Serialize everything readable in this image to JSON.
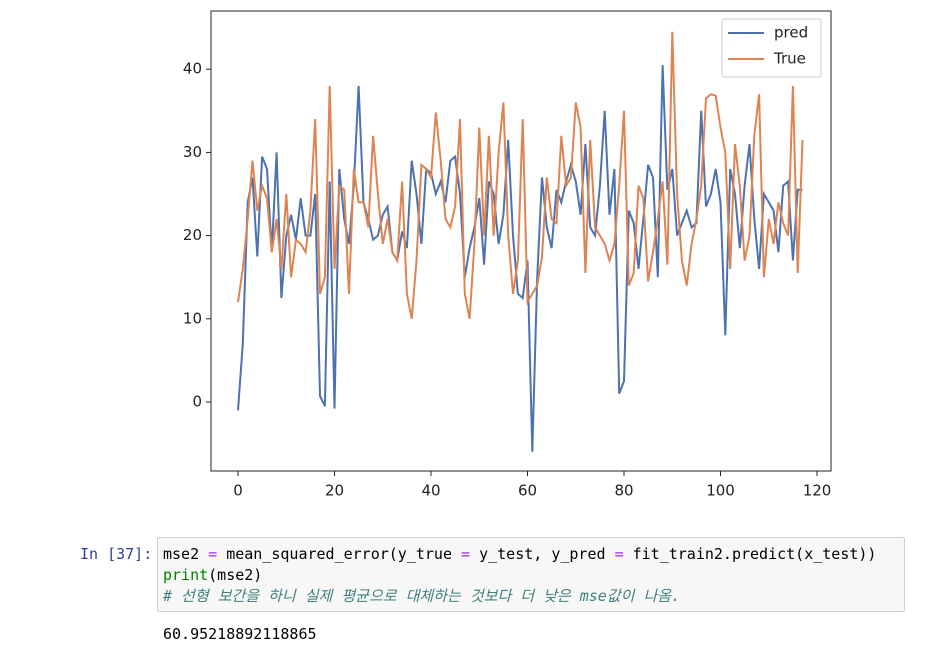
{
  "chart_data": {
    "type": "line",
    "x": [
      0,
      1,
      2,
      3,
      4,
      5,
      6,
      7,
      8,
      9,
      10,
      11,
      12,
      13,
      14,
      15,
      16,
      17,
      18,
      19,
      20,
      21,
      22,
      23,
      24,
      25,
      26,
      27,
      28,
      29,
      30,
      31,
      32,
      33,
      34,
      35,
      36,
      37,
      38,
      39,
      40,
      41,
      42,
      43,
      44,
      45,
      46,
      47,
      48,
      49,
      50,
      51,
      52,
      53,
      54,
      55,
      56,
      57,
      58,
      59,
      60,
      61,
      62,
      63,
      64,
      65,
      66,
      67,
      68,
      69,
      70,
      71,
      72,
      73,
      74,
      75,
      76,
      77,
      78,
      79,
      80,
      81,
      82,
      83,
      84,
      85,
      86,
      87,
      88,
      89,
      90,
      91,
      92,
      93,
      94,
      95,
      96,
      97,
      98,
      99,
      100,
      101,
      102,
      103,
      104,
      105,
      106,
      107,
      108,
      109,
      110,
      111,
      112,
      113,
      114,
      115,
      116,
      117
    ],
    "series": [
      {
        "name": "pred",
        "color": "#4c72b0",
        "values": [
          -1,
          7,
          24,
          27,
          17.5,
          29.5,
          28,
          18,
          30,
          12.5,
          20,
          22.5,
          19.5,
          24.5,
          20,
          20,
          25,
          0.7,
          -0.5,
          26.5,
          -0.8,
          28,
          22,
          19,
          26,
          38,
          24,
          22,
          19.5,
          20,
          22.5,
          23.5,
          18,
          17,
          20.5,
          18.5,
          29,
          25,
          19,
          28,
          27.5,
          25,
          26.5,
          24,
          29,
          29.5,
          25,
          15,
          18.5,
          21,
          24.5,
          16.5,
          26.5,
          25,
          19,
          22.5,
          31.5,
          20,
          13,
          12.5,
          17,
          -6,
          15,
          27,
          21,
          18.5,
          25.5,
          24,
          26.5,
          28.5,
          26.5,
          22.5,
          31,
          21,
          20,
          26,
          35,
          22.5,
          28,
          1,
          2.5,
          23,
          21.5,
          16,
          22,
          28.5,
          27,
          15,
          40.5,
          25.5,
          28,
          20,
          21.5,
          23,
          21,
          21.5,
          35,
          23.5,
          25,
          28,
          24,
          8,
          28,
          25,
          18.5,
          26,
          31,
          22,
          16,
          25,
          24,
          23,
          18,
          26,
          26.5,
          17,
          25.5,
          25.5
        ]
      },
      {
        "name": "True",
        "color": "#dd8452",
        "values": [
          12,
          16,
          22,
          29,
          23,
          26,
          24.5,
          18,
          22,
          16,
          25,
          15,
          19.5,
          19,
          18,
          23,
          34,
          13,
          15,
          38,
          16,
          26,
          25.5,
          13,
          28,
          24,
          24,
          21,
          32,
          25,
          19,
          22,
          18,
          17,
          26.5,
          13,
          10,
          17,
          28.5,
          28,
          27,
          34.8,
          29,
          22,
          21,
          23.5,
          34,
          13,
          10,
          19,
          33,
          20,
          32,
          20,
          30,
          36,
          20,
          13,
          17,
          34,
          12,
          13,
          14,
          17.5,
          27,
          22,
          21.5,
          32,
          26,
          27,
          36,
          33,
          15.5,
          31.5,
          21,
          20,
          19,
          17,
          19,
          26,
          35,
          14,
          15.5,
          26,
          24.5,
          14.5,
          18,
          22,
          26.5,
          16.5,
          44.5,
          25,
          17,
          14,
          19,
          22,
          26,
          36.5,
          37,
          36.8,
          33,
          30,
          16,
          31,
          26,
          17,
          20,
          32,
          37,
          15,
          22,
          19,
          24,
          21.5,
          20,
          38,
          15.5,
          31.5
        ]
      }
    ],
    "xlim": [
      -5.6,
      122.9
    ],
    "xticks": [
      0,
      20,
      40,
      60,
      80,
      100,
      120
    ],
    "ylim": [
      -8.3,
      47.0
    ],
    "yticks": [
      0,
      10,
      20,
      30,
      40
    ],
    "legend": "upper right"
  },
  "cell": {
    "prompt": "In [37]:",
    "lines": [
      [
        {
          "text": "mse2 ",
          "style": "plain"
        },
        {
          "text": "=",
          "style": "operator"
        },
        {
          "text": " mean_squared_error(y_true ",
          "style": "plain"
        },
        {
          "text": "=",
          "style": "operator"
        },
        {
          "text": " y_test, y_pred ",
          "style": "plain"
        },
        {
          "text": "=",
          "style": "operator"
        },
        {
          "text": " fit_train2.predict(x_test))",
          "style": "plain"
        }
      ],
      [
        {
          "text": "print",
          "style": "builtin"
        },
        {
          "text": "(mse2)",
          "style": "plain"
        }
      ],
      [
        {
          "text": "# 선형 보간을 하니 실제 평균으로 대체하는 것보다 더 낮은 mse값이 나옴.",
          "style": "comment"
        }
      ]
    ],
    "output": "60.95218892118865"
  }
}
